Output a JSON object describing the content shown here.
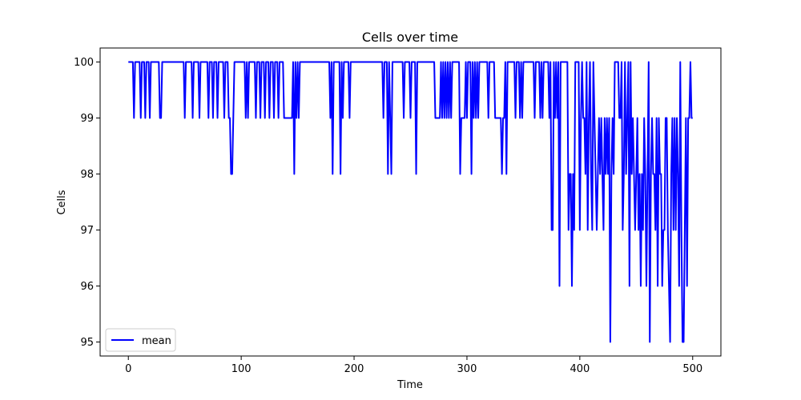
{
  "chart_data": {
    "type": "line",
    "title": "Cells over time",
    "xlabel": "Time",
    "ylabel": "Cells",
    "xlim": [
      -25,
      525
    ],
    "ylim": [
      94.75,
      100.25
    ],
    "xticks": [
      0,
      100,
      200,
      300,
      400,
      500
    ],
    "yticks": [
      95,
      96,
      97,
      98,
      99,
      100
    ],
    "grid": false,
    "legend_position": "lower-left",
    "colors": {
      "line": "#0000ff"
    },
    "series": [
      {
        "name": "mean",
        "points": [
          [
            0,
            100
          ],
          [
            4,
            100
          ],
          [
            5,
            99
          ],
          [
            6,
            100
          ],
          [
            10,
            100
          ],
          [
            11,
            99
          ],
          [
            12,
            100
          ],
          [
            14,
            100
          ],
          [
            15,
            99
          ],
          [
            16,
            100
          ],
          [
            18,
            100
          ],
          [
            19,
            99
          ],
          [
            20,
            100
          ],
          [
            27,
            100
          ],
          [
            28,
            99
          ],
          [
            29,
            99
          ],
          [
            30,
            100
          ],
          [
            49,
            100
          ],
          [
            50,
            99
          ],
          [
            51,
            100
          ],
          [
            56,
            100
          ],
          [
            57,
            99
          ],
          [
            58,
            100
          ],
          [
            62,
            100
          ],
          [
            63,
            99
          ],
          [
            64,
            100
          ],
          [
            70,
            100
          ],
          [
            71,
            99
          ],
          [
            72,
            100
          ],
          [
            74,
            100
          ],
          [
            75,
            99
          ],
          [
            76,
            100
          ],
          [
            78,
            100
          ],
          [
            79,
            99
          ],
          [
            80,
            100
          ],
          [
            84,
            100
          ],
          [
            85,
            99
          ],
          [
            86,
            100
          ],
          [
            88,
            100
          ],
          [
            89,
            99
          ],
          [
            90,
            99
          ],
          [
            91,
            98
          ],
          [
            92,
            98
          ],
          [
            93,
            99
          ],
          [
            94,
            100
          ],
          [
            103,
            100
          ],
          [
            104,
            99
          ],
          [
            105,
            100
          ],
          [
            106,
            99
          ],
          [
            107,
            100
          ],
          [
            112,
            100
          ],
          [
            113,
            99
          ],
          [
            114,
            100
          ],
          [
            116,
            100
          ],
          [
            117,
            99
          ],
          [
            118,
            100
          ],
          [
            120,
            100
          ],
          [
            121,
            99
          ],
          [
            122,
            100
          ],
          [
            124,
            100
          ],
          [
            125,
            99
          ],
          [
            126,
            100
          ],
          [
            128,
            100
          ],
          [
            129,
            99
          ],
          [
            130,
            100
          ],
          [
            132,
            100
          ],
          [
            133,
            99
          ],
          [
            134,
            100
          ],
          [
            137,
            100
          ],
          [
            138,
            99
          ],
          [
            145,
            99
          ],
          [
            146,
            100
          ],
          [
            147,
            98
          ],
          [
            148,
            100
          ],
          [
            149,
            99
          ],
          [
            150,
            100
          ],
          [
            151,
            99
          ],
          [
            152,
            100
          ],
          [
            178,
            100
          ],
          [
            179,
            99
          ],
          [
            180,
            100
          ],
          [
            181,
            98
          ],
          [
            182,
            100
          ],
          [
            187,
            100
          ],
          [
            188,
            98
          ],
          [
            189,
            100
          ],
          [
            190,
            99
          ],
          [
            191,
            100
          ],
          [
            195,
            100
          ],
          [
            196,
            99
          ],
          [
            197,
            100
          ],
          [
            225,
            100
          ],
          [
            226,
            99
          ],
          [
            227,
            100
          ],
          [
            229,
            100
          ],
          [
            230,
            98
          ],
          [
            231,
            100
          ],
          [
            233,
            98
          ],
          [
            234,
            100
          ],
          [
            243,
            100
          ],
          [
            244,
            99
          ],
          [
            245,
            100
          ],
          [
            249,
            100
          ],
          [
            250,
            99
          ],
          [
            251,
            100
          ],
          [
            254,
            100
          ],
          [
            255,
            98
          ],
          [
            256,
            100
          ],
          [
            271,
            100
          ],
          [
            272,
            99
          ],
          [
            276,
            99
          ],
          [
            277,
            100
          ],
          [
            278,
            99
          ],
          [
            279,
            100
          ],
          [
            280,
            99
          ],
          [
            281,
            100
          ],
          [
            282,
            99
          ],
          [
            283,
            100
          ],
          [
            284,
            99
          ],
          [
            285,
            100
          ],
          [
            286,
            99
          ],
          [
            287,
            100
          ],
          [
            293,
            100
          ],
          [
            294,
            98
          ],
          [
            295,
            99
          ],
          [
            298,
            99
          ],
          [
            299,
            100
          ],
          [
            300,
            99
          ],
          [
            301,
            100
          ],
          [
            303,
            100
          ],
          [
            304,
            98
          ],
          [
            305,
            100
          ],
          [
            306,
            99
          ],
          [
            307,
            100
          ],
          [
            308,
            99
          ],
          [
            309,
            100
          ],
          [
            310,
            99
          ],
          [
            311,
            100
          ],
          [
            318,
            100
          ],
          [
            319,
            99
          ],
          [
            320,
            100
          ],
          [
            324,
            100
          ],
          [
            325,
            99
          ],
          [
            330,
            99
          ],
          [
            331,
            98
          ],
          [
            332,
            99
          ],
          [
            333,
            99
          ],
          [
            334,
            100
          ],
          [
            335,
            98
          ],
          [
            336,
            100
          ],
          [
            342,
            100
          ],
          [
            343,
            99
          ],
          [
            344,
            100
          ],
          [
            346,
            100
          ],
          [
            347,
            99
          ],
          [
            348,
            100
          ],
          [
            349,
            99
          ],
          [
            350,
            100
          ],
          [
            359,
            100
          ],
          [
            360,
            99
          ],
          [
            361,
            100
          ],
          [
            364,
            100
          ],
          [
            365,
            99
          ],
          [
            366,
            100
          ],
          [
            367,
            99
          ],
          [
            368,
            100
          ],
          [
            372,
            100
          ],
          [
            373,
            99
          ],
          [
            374,
            100
          ],
          [
            375,
            97
          ],
          [
            376,
            97
          ],
          [
            377,
            100
          ],
          [
            378,
            99
          ],
          [
            379,
            100
          ],
          [
            380,
            99
          ],
          [
            381,
            100
          ],
          [
            382,
            96
          ],
          [
            383,
            100
          ],
          [
            389,
            100
          ],
          [
            390,
            97
          ],
          [
            391,
            98
          ],
          [
            392,
            98
          ],
          [
            393,
            96
          ],
          [
            394,
            98
          ],
          [
            395,
            97
          ],
          [
            396,
            100
          ],
          [
            399,
            100
          ],
          [
            400,
            97
          ],
          [
            401,
            99
          ],
          [
            402,
            100
          ],
          [
            403,
            99
          ],
          [
            404,
            99
          ],
          [
            405,
            98
          ],
          [
            406,
            100
          ],
          [
            407,
            97
          ],
          [
            408,
            99
          ],
          [
            409,
            100
          ],
          [
            410,
            98
          ],
          [
            411,
            97
          ],
          [
            412,
            100
          ],
          [
            413,
            99
          ],
          [
            414,
            98
          ],
          [
            415,
            97
          ],
          [
            416,
            98
          ],
          [
            417,
            99
          ],
          [
            418,
            98
          ],
          [
            419,
            99
          ],
          [
            420,
            98
          ],
          [
            421,
            97
          ],
          [
            422,
            99
          ],
          [
            423,
            98
          ],
          [
            424,
            99
          ],
          [
            425,
            98
          ],
          [
            426,
            99
          ],
          [
            427,
            95
          ],
          [
            428,
            98
          ],
          [
            429,
            99
          ],
          [
            430,
            98
          ],
          [
            431,
            100
          ],
          [
            434,
            100
          ],
          [
            435,
            99
          ],
          [
            436,
            99
          ],
          [
            437,
            100
          ],
          [
            438,
            97
          ],
          [
            439,
            98
          ],
          [
            440,
            100
          ],
          [
            441,
            98
          ],
          [
            442,
            99
          ],
          [
            443,
            100
          ],
          [
            444,
            96
          ],
          [
            445,
            100
          ],
          [
            446,
            98
          ],
          [
            447,
            99
          ],
          [
            448,
            98
          ],
          [
            449,
            97
          ],
          [
            450,
            98
          ],
          [
            451,
            99
          ],
          [
            452,
            97
          ],
          [
            453,
            98
          ],
          [
            454,
            96
          ],
          [
            455,
            98
          ],
          [
            456,
            97
          ],
          [
            457,
            99
          ],
          [
            458,
            98
          ],
          [
            459,
            96
          ],
          [
            460,
            98
          ],
          [
            461,
            100
          ],
          [
            462,
            95
          ],
          [
            463,
            98
          ],
          [
            464,
            99
          ],
          [
            465,
            98
          ],
          [
            466,
            98
          ],
          [
            467,
            97
          ],
          [
            468,
            99
          ],
          [
            469,
            96
          ],
          [
            470,
            99
          ],
          [
            471,
            98
          ],
          [
            472,
            98
          ],
          [
            473,
            96
          ],
          [
            474,
            97
          ],
          [
            475,
            97
          ],
          [
            476,
            99
          ],
          [
            477,
            99
          ],
          [
            478,
            97
          ],
          [
            479,
            96
          ],
          [
            480,
            95
          ],
          [
            481,
            98
          ],
          [
            482,
            99
          ],
          [
            483,
            97
          ],
          [
            484,
            99
          ],
          [
            485,
            97
          ],
          [
            486,
            99
          ],
          [
            487,
            98
          ],
          [
            488,
            96
          ],
          [
            489,
            100
          ],
          [
            490,
            97
          ],
          [
            491,
            95
          ],
          [
            492,
            95
          ],
          [
            493,
            97
          ],
          [
            494,
            99
          ],
          [
            495,
            96
          ],
          [
            496,
            99
          ],
          [
            497,
            99
          ],
          [
            498,
            100
          ],
          [
            499,
            99
          ],
          [
            500,
            99
          ]
        ]
      }
    ]
  }
}
